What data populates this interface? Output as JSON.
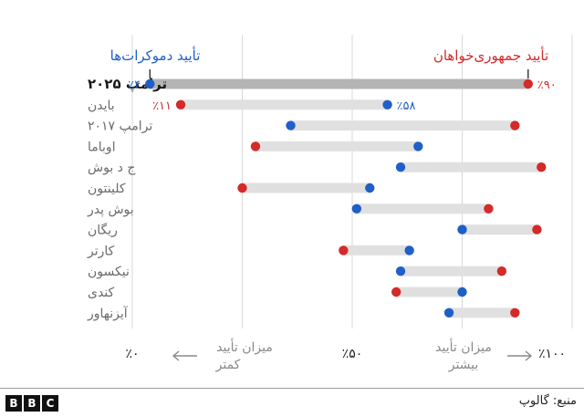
{
  "chart_data": {
    "type": "dumbbell",
    "series": [
      {
        "name": "تأیید دموکرات‌ها",
        "color": "#1f5fc7"
      },
      {
        "name": "تأیید جمهوری‌خواهان",
        "color": "#d42a2a"
      }
    ],
    "categories": [
      "ترامپ ۲۰۲۵",
      "بایدن",
      "ترامپ ۲۰۱۷",
      "اوباما",
      "ج د بوش",
      "کلینتون",
      "بوش پدر",
      "ریگان",
      "کارتر",
      "نیکسون",
      "کندی",
      "آیزنهاور"
    ],
    "democrat": [
      4,
      58,
      36,
      65,
      61,
      54,
      51,
      75,
      63,
      61,
      75,
      72
    ],
    "republican": [
      90,
      11,
      87,
      28,
      93,
      25,
      81,
      92,
      48,
      84,
      60,
      87
    ],
    "labels": [
      {
        "row": 0,
        "dem": "٪۴",
        "rep": "٪۹۰"
      },
      {
        "row": 1,
        "dem": "٪۵۸",
        "rep": "٪۱۱"
      }
    ],
    "xlim": [
      0,
      100
    ],
    "x_ticks": [
      {
        "value": 0,
        "label": "٪۰"
      },
      {
        "value": 50,
        "label": "٪۵۰"
      },
      {
        "value": 100,
        "label": "٪۱۰۰"
      }
    ],
    "axis_notes": {
      "less": [
        "میزان تأیید",
        "کمتر"
      ],
      "more": [
        "میزان تأیید",
        "بیشتر"
      ]
    },
    "grid": true
  },
  "footer": {
    "source": "منبع: گالوپ",
    "logo_letters": [
      "B",
      "B",
      "C"
    ]
  }
}
